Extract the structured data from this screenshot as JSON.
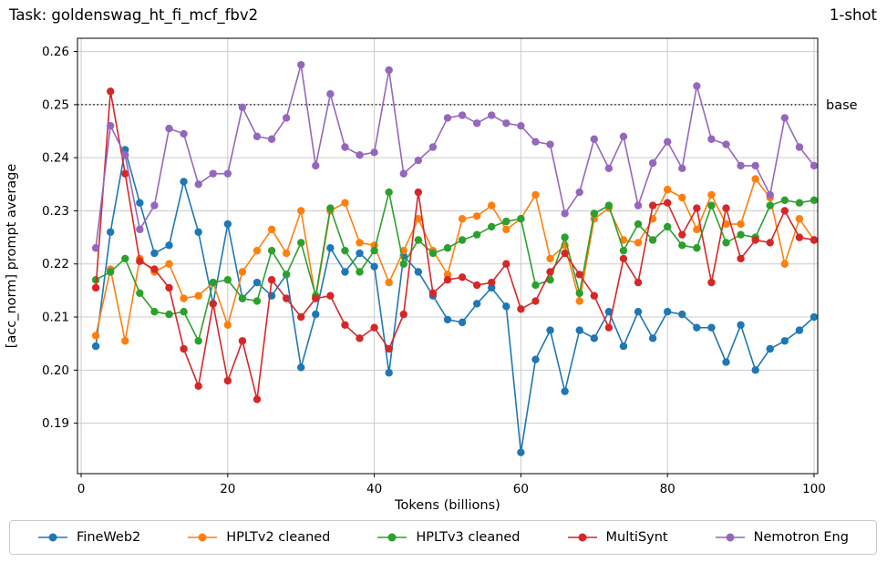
{
  "header": {
    "title": "Task: goldenswag_ht_fi_mcf_fbv2",
    "shot_label": "1-shot"
  },
  "chart_data": {
    "type": "line",
    "title": "Task: goldenswag_ht_fi_mcf_fbv2",
    "shot_label": "1-shot",
    "xlabel": "Tokens (billions)",
    "ylabel": "[acc_norm] prompt average",
    "xlim": [
      -0.5,
      100.5
    ],
    "ylim": [
      0.1805,
      0.2625
    ],
    "xticks": [
      0,
      20,
      40,
      60,
      80,
      100
    ],
    "yticks": [
      0.19,
      0.2,
      0.21,
      0.22,
      0.23,
      0.24,
      0.25,
      0.26
    ],
    "grid": true,
    "legend_position": "bottom",
    "baseline": {
      "value": 0.25,
      "label": "base",
      "style": "dotted",
      "color": "#000000"
    },
    "x": [
      2,
      4,
      6,
      8,
      10,
      12,
      14,
      16,
      18,
      20,
      22,
      24,
      26,
      28,
      30,
      32,
      34,
      36,
      38,
      40,
      42,
      44,
      46,
      48,
      50,
      52,
      54,
      56,
      58,
      60,
      62,
      64,
      66,
      68,
      70,
      72,
      74,
      76,
      78,
      80,
      82,
      84,
      86,
      88,
      90,
      92,
      94,
      96,
      98,
      100
    ],
    "series": [
      {
        "name": "FineWeb2",
        "color": "#1f77b4",
        "values": [
          0.2045,
          0.226,
          0.2415,
          0.2315,
          0.222,
          0.2235,
          0.2355,
          0.226,
          0.2125,
          0.2275,
          0.2135,
          0.2165,
          0.214,
          0.218,
          0.2005,
          0.2105,
          0.223,
          0.2185,
          0.222,
          0.2195,
          0.1995,
          0.2215,
          0.2185,
          0.214,
          0.2095,
          0.209,
          0.2125,
          0.2155,
          0.212,
          0.1845,
          0.202,
          0.2075,
          0.196,
          0.2075,
          0.206,
          0.211,
          0.2045,
          0.211,
          0.206,
          0.211,
          0.2105,
          0.208,
          0.208,
          0.2015,
          0.2085,
          0.2,
          0.204,
          0.2055,
          0.2075,
          0.21
        ]
      },
      {
        "name": "HPLTv2 cleaned",
        "color": "#ff7f0e",
        "values": [
          0.2065,
          0.219,
          0.2055,
          0.221,
          0.2185,
          0.22,
          0.2135,
          0.214,
          0.2165,
          0.2085,
          0.2185,
          0.2225,
          0.2265,
          0.222,
          0.23,
          0.2135,
          0.23,
          0.2315,
          0.224,
          0.2235,
          0.2165,
          0.2225,
          0.2285,
          0.2225,
          0.218,
          0.2285,
          0.229,
          0.231,
          0.2265,
          0.2285,
          0.233,
          0.221,
          0.2235,
          0.213,
          0.2285,
          0.2305,
          0.2245,
          0.224,
          0.2285,
          0.234,
          0.2325,
          0.2265,
          0.233,
          0.2275,
          0.2275,
          0.236,
          0.2325,
          0.22,
          0.2285,
          0.2245
        ]
      },
      {
        "name": "HPLTv3 cleaned",
        "color": "#2ca02c",
        "values": [
          0.217,
          0.2185,
          0.221,
          0.2145,
          0.211,
          0.2105,
          0.211,
          0.2055,
          0.2165,
          0.217,
          0.2135,
          0.213,
          0.2225,
          0.218,
          0.224,
          0.214,
          0.2305,
          0.2225,
          0.2185,
          0.2225,
          0.2335,
          0.22,
          0.2245,
          0.222,
          0.223,
          0.2245,
          0.2255,
          0.227,
          0.228,
          0.2285,
          0.216,
          0.217,
          0.225,
          0.2145,
          0.2295,
          0.231,
          0.2225,
          0.2275,
          0.2245,
          0.227,
          0.2235,
          0.223,
          0.231,
          0.224,
          0.2255,
          0.225,
          0.231,
          0.232,
          0.2315,
          0.232
        ]
      },
      {
        "name": "MultiSynt",
        "color": "#d62728",
        "values": [
          0.2155,
          0.2525,
          0.237,
          0.2205,
          0.219,
          0.2155,
          0.204,
          0.197,
          0.2125,
          0.198,
          0.2055,
          0.1945,
          0.217,
          0.2135,
          0.21,
          0.2135,
          0.214,
          0.2085,
          0.206,
          0.208,
          0.204,
          0.2105,
          0.2335,
          0.2145,
          0.217,
          0.2175,
          0.216,
          0.2165,
          0.22,
          0.2115,
          0.213,
          0.2185,
          0.222,
          0.218,
          0.214,
          0.208,
          0.221,
          0.2165,
          0.231,
          0.2315,
          0.2255,
          0.2305,
          0.2165,
          0.2305,
          0.221,
          0.2245,
          0.224,
          0.23,
          0.225,
          0.2245
        ]
      },
      {
        "name": "Nemotron Eng",
        "color": "#9467bd",
        "values": [
          0.223,
          0.246,
          0.2405,
          0.2265,
          0.231,
          0.2455,
          0.2445,
          0.235,
          0.237,
          0.237,
          0.2495,
          0.244,
          0.2435,
          0.2475,
          0.2575,
          0.2385,
          0.252,
          0.242,
          0.2405,
          0.241,
          0.2565,
          0.237,
          0.2395,
          0.242,
          0.2475,
          0.248,
          0.2465,
          0.248,
          0.2465,
          0.246,
          0.243,
          0.2425,
          0.2295,
          0.2335,
          0.2435,
          0.238,
          0.244,
          0.231,
          0.239,
          0.243,
          0.238,
          0.2535,
          0.2435,
          0.2425,
          0.2385,
          0.2385,
          0.233,
          0.2475,
          0.242,
          0.2385
        ]
      }
    ]
  }
}
